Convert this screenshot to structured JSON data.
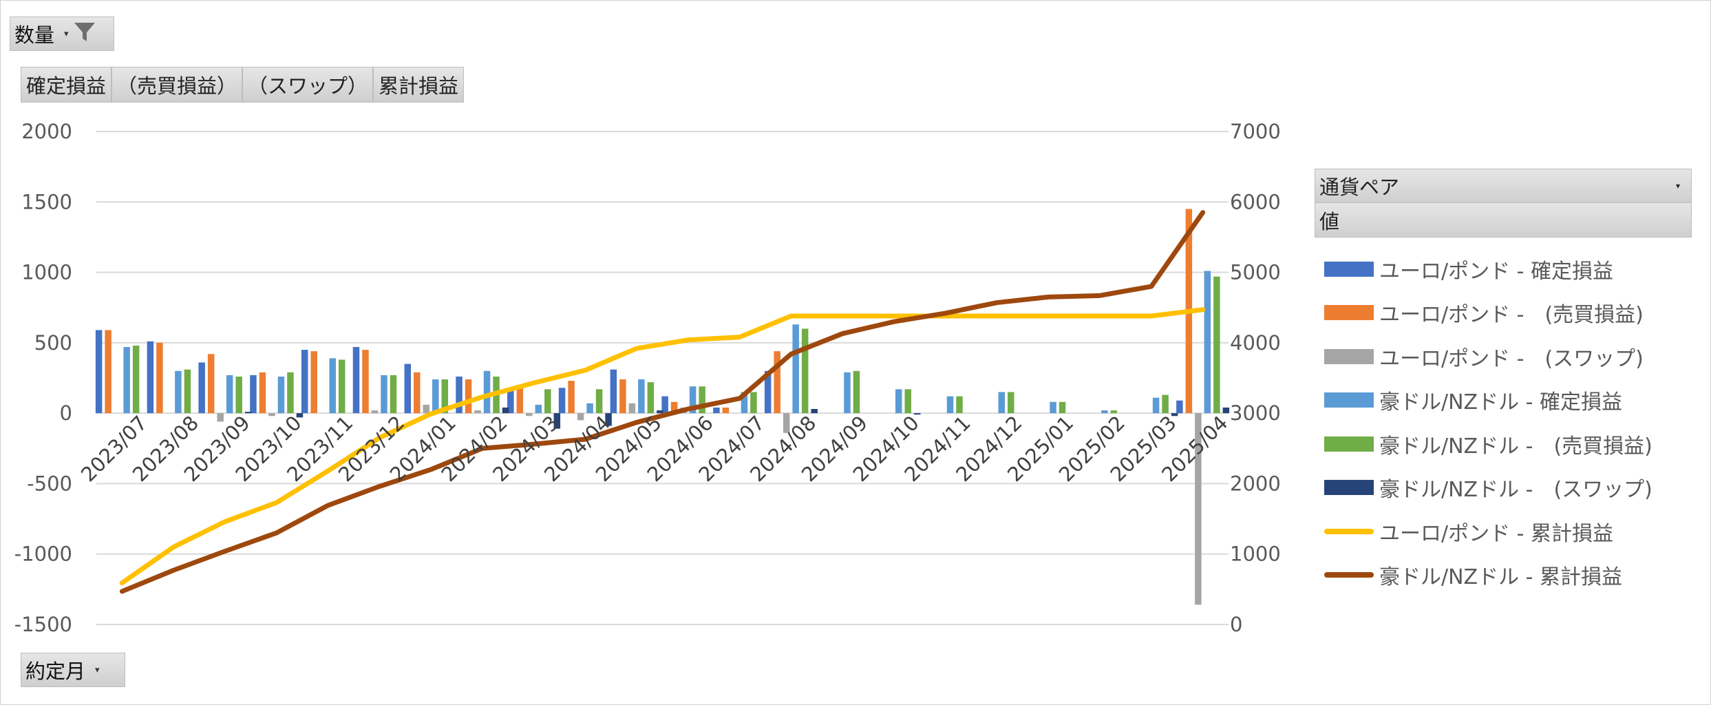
{
  "filter_field": "数量",
  "values_fields": [
    "確定損益",
    "（売買損益）",
    "（スワップ）",
    "累計損益"
  ],
  "axis_field": "約定月",
  "legend_field": "通貨ペア",
  "legend_values_label": "値",
  "chart_data": {
    "type": "bar",
    "categories": [
      "2023/07",
      "2023/08",
      "2023/09",
      "2023/10",
      "2023/11",
      "2023/12",
      "2024/01",
      "2024/02",
      "2024/03",
      "2024/04",
      "2024/05",
      "2024/06",
      "2024/07",
      "2024/08",
      "2024/09",
      "2024/10",
      "2024/11",
      "2024/12",
      "2025/01",
      "2025/02",
      "2025/03",
      "2025/04"
    ],
    "y_left": {
      "min": -1500,
      "max": 2000,
      "ticks": [
        2000,
        1500,
        1000,
        500,
        0,
        -500,
        -1000,
        -1500
      ]
    },
    "y_right": {
      "min": 0,
      "max": 7000,
      "ticks": [
        7000,
        6000,
        5000,
        4000,
        3000,
        2000,
        1000,
        0
      ]
    },
    "grid": true,
    "legend_position": "right",
    "series": [
      {
        "name": "ユーロ/ポンド - 確定損益",
        "kind": "bar",
        "axis": "left",
        "color": "#4472C4",
        "values": [
          590,
          510,
          360,
          270,
          450,
          470,
          350,
          260,
          180,
          180,
          310,
          120,
          40,
          300,
          0,
          0,
          0,
          0,
          0,
          0,
          0,
          90
        ]
      },
      {
        "name": "ユーロ/ポンド -　(売買損益)",
        "kind": "bar",
        "axis": "left",
        "color": "#ED7D31",
        "values": [
          590,
          500,
          420,
          290,
          440,
          450,
          290,
          240,
          200,
          230,
          240,
          80,
          40,
          440,
          0,
          0,
          0,
          0,
          0,
          0,
          0,
          1450
        ]
      },
      {
        "name": "ユーロ/ポンド -　(スワップ)",
        "kind": "bar",
        "axis": "left",
        "color": "#A5A5A5",
        "values": [
          0,
          0,
          -60,
          -20,
          0,
          20,
          60,
          20,
          -20,
          -50,
          70,
          40,
          0,
          -140,
          0,
          0,
          0,
          0,
          0,
          0,
          0,
          -1360
        ]
      },
      {
        "name": "豪ドル/NZドル - 確定損益",
        "kind": "bar",
        "axis": "left",
        "color": "#5B9BD5",
        "values": [
          470,
          300,
          270,
          260,
          390,
          270,
          240,
          300,
          60,
          70,
          240,
          190,
          150,
          630,
          290,
          170,
          120,
          150,
          80,
          20,
          110,
          1010
        ]
      },
      {
        "name": "豪ドル/NZドル -　(売買損益)",
        "kind": "bar",
        "axis": "left",
        "color": "#70AD47",
        "values": [
          480,
          310,
          260,
          290,
          380,
          270,
          240,
          260,
          170,
          170,
          220,
          190,
          150,
          600,
          300,
          170,
          120,
          150,
          80,
          20,
          130,
          970
        ]
      },
      {
        "name": "豪ドル/NZドル -　(スワップ)",
        "kind": "bar",
        "axis": "left",
        "color": "#264478",
        "values": [
          0,
          0,
          10,
          -30,
          0,
          0,
          0,
          40,
          -110,
          -90,
          20,
          0,
          0,
          30,
          0,
          -10,
          0,
          0,
          0,
          0,
          -20,
          40
        ]
      },
      {
        "name": "ユーロ/ポンド - 累計損益",
        "kind": "line",
        "axis": "right",
        "color": "#FFC000",
        "values": [
          590,
          1100,
          1460,
          1730,
          2180,
          2650,
          2990,
          3230,
          3430,
          3610,
          3920,
          4040,
          4080,
          4380,
          4380,
          4380,
          4380,
          4380,
          4380,
          4380,
          4380,
          4470
        ]
      },
      {
        "name": "豪ドル/NZドル - 累計損益",
        "kind": "line",
        "axis": "right",
        "color": "#9E480E",
        "values": [
          470,
          770,
          1040,
          1300,
          1690,
          1960,
          2200,
          2500,
          2560,
          2630,
          2870,
          3060,
          3210,
          3840,
          4130,
          4300,
          4420,
          4570,
          4650,
          4670,
          4800,
          5850
        ]
      }
    ]
  }
}
